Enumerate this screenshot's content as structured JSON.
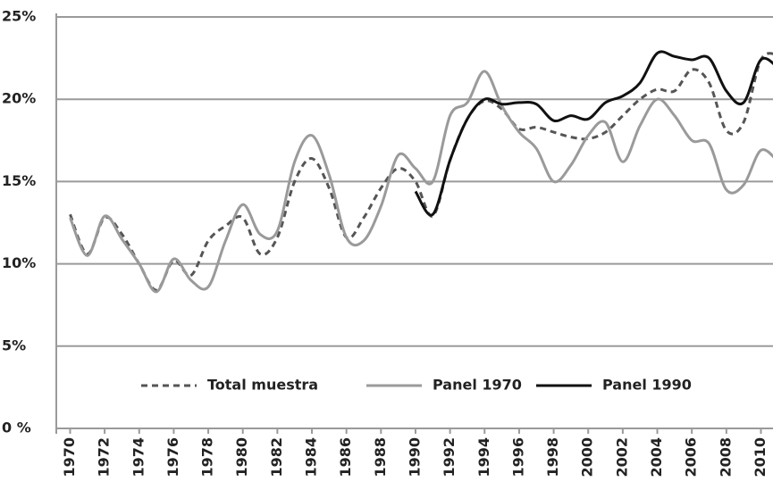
{
  "chart_data": {
    "type": "line",
    "x": [
      1970,
      1971,
      1972,
      1973,
      1974,
      1975,
      1976,
      1977,
      1978,
      1979,
      1980,
      1981,
      1982,
      1983,
      1984,
      1985,
      1986,
      1987,
      1988,
      1989,
      1990,
      1991,
      1992,
      1993,
      1994,
      1995,
      1996,
      1997,
      1998,
      1999,
      2000,
      2001,
      2002,
      2003,
      2004,
      2005,
      2006,
      2007,
      2008,
      2009,
      2010,
      2011
    ],
    "series": [
      {
        "name": "Total muestra",
        "color": "#555555",
        "dashed": true,
        "values": [
          13.0,
          10.6,
          12.8,
          11.8,
          10.0,
          8.4,
          10.2,
          9.3,
          11.4,
          12.3,
          12.8,
          10.6,
          11.6,
          15.0,
          16.4,
          14.6,
          11.6,
          12.8,
          14.6,
          15.8,
          15.0,
          12.9,
          16.3,
          18.8,
          19.9,
          19.4,
          18.2,
          18.3,
          18.0,
          17.7,
          17.6,
          18.0,
          19.0,
          20.0,
          20.6,
          20.5,
          21.8,
          21.0,
          18.1,
          18.6,
          22.4,
          22.7
        ]
      },
      {
        "name": "Panel 1970",
        "color": "#9a9a9a",
        "dashed": false,
        "values": [
          12.8,
          10.5,
          12.9,
          11.5,
          10.0,
          8.3,
          10.3,
          9.0,
          8.6,
          11.4,
          13.6,
          11.8,
          12.0,
          16.2,
          17.8,
          15.4,
          11.6,
          11.4,
          13.5,
          16.6,
          15.8,
          15.0,
          19.0,
          19.8,
          21.7,
          19.6,
          18.0,
          17.0,
          15.0,
          16.0,
          17.8,
          18.6,
          16.2,
          18.4,
          20.0,
          19.0,
          17.5,
          17.3,
          14.5,
          14.8,
          16.9,
          16.2
        ]
      },
      {
        "name": "Panel 1990",
        "color": "#111111",
        "dashed": false,
        "values": [
          null,
          null,
          null,
          null,
          null,
          null,
          null,
          null,
          null,
          null,
          null,
          null,
          null,
          null,
          null,
          null,
          null,
          null,
          null,
          null,
          14.4,
          13.0,
          16.3,
          18.8,
          20.0,
          19.7,
          19.8,
          19.7,
          18.7,
          19.0,
          18.8,
          19.8,
          20.2,
          21.0,
          22.8,
          22.6,
          22.4,
          22.5,
          20.5,
          19.8,
          22.4,
          21.9
        ]
      }
    ],
    "xlim": [
      1969.2,
      2010.7
    ],
    "xticks": [
      1970,
      1972,
      1974,
      1976,
      1978,
      1980,
      1982,
      1984,
      1986,
      1988,
      1990,
      1992,
      1994,
      1996,
      1998,
      2000,
      2002,
      2004,
      2006,
      2008,
      2010
    ],
    "ylim": [
      0,
      25
    ],
    "yticks": [
      {
        "value": 0,
        "label": "0 %"
      },
      {
        "value": 5,
        "label": "5%"
      },
      {
        "value": 10,
        "label": "10%"
      },
      {
        "value": 15,
        "label": "15%"
      },
      {
        "value": 20,
        "label": "20%"
      },
      {
        "value": 25,
        "label": "25%"
      }
    ],
    "grid": true,
    "legend": "bottom"
  }
}
